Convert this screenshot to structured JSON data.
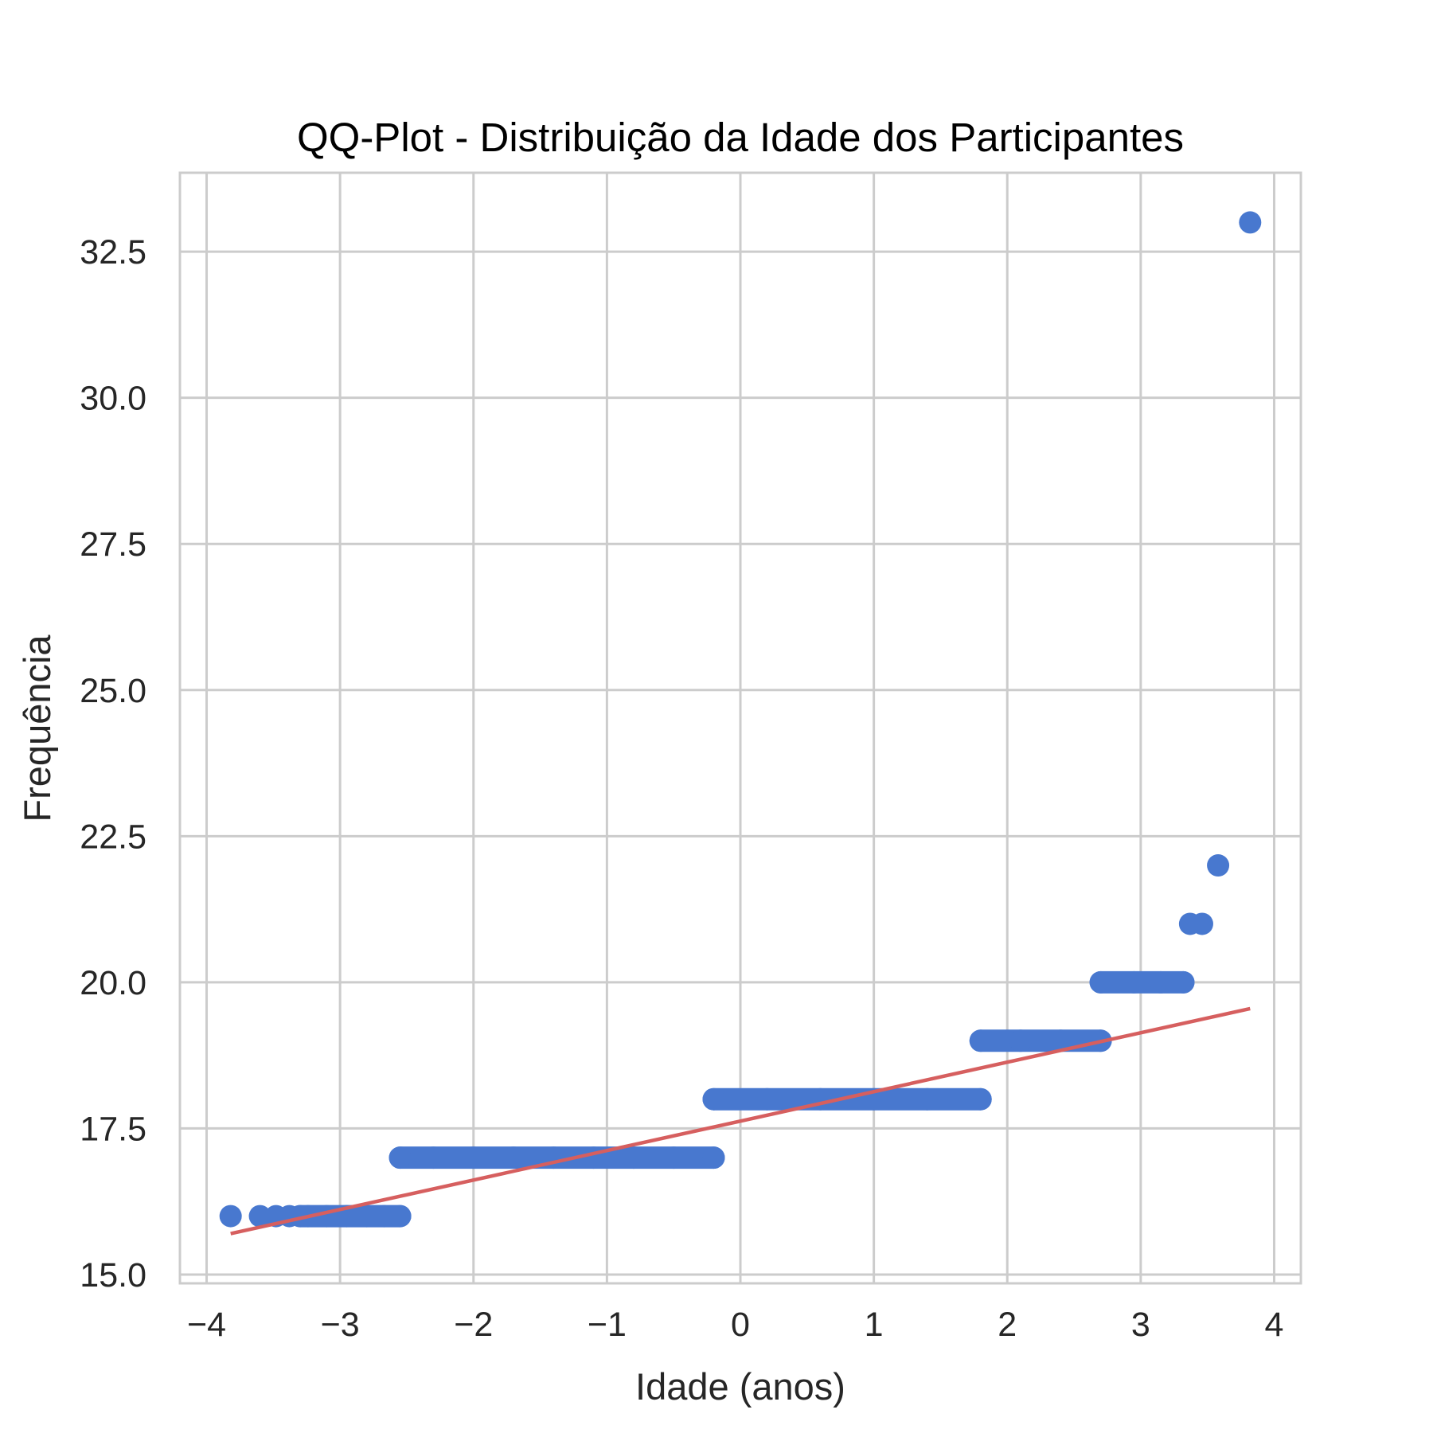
{
  "chart_data": {
    "type": "scatter",
    "title": "QQ-Plot - Distribuição da Idade dos Participantes",
    "xlabel": "Idade (anos)",
    "ylabel": "Frequência",
    "xlim": [
      -4.2,
      4.2
    ],
    "ylim": [
      14.85,
      33.85
    ],
    "x_ticks": [
      -4,
      -3,
      -2,
      -1,
      0,
      1,
      2,
      3,
      4
    ],
    "x_tick_labels": [
      "−4",
      "−3",
      "−2",
      "−1",
      "0",
      "1",
      "2",
      "3",
      "4"
    ],
    "y_ticks": [
      15.0,
      17.5,
      20.0,
      22.5,
      25.0,
      27.5,
      30.0,
      32.5
    ],
    "y_tick_labels": [
      "15.0",
      "17.5",
      "20.0",
      "22.5",
      "25.0",
      "27.5",
      "30.0",
      "32.5"
    ],
    "grid": true,
    "colors": {
      "points": "#4878cf",
      "fit_line": "#d65f5f",
      "grid": "#cccccc"
    },
    "series": [
      {
        "kind": "points",
        "points": [
          [
            -3.82,
            16
          ],
          [
            -3.6,
            16
          ],
          [
            -3.48,
            16
          ],
          [
            -3.38,
            16
          ],
          [
            -3.3,
            16
          ],
          [
            -3.24,
            16
          ],
          [
            -3.1,
            16
          ],
          [
            -2.95,
            16
          ],
          [
            -2.8,
            16
          ],
          [
            -2.67,
            16
          ],
          [
            -2.55,
            16
          ],
          [
            -2.55,
            17
          ],
          [
            -2.3,
            17
          ],
          [
            -2.0,
            17
          ],
          [
            -1.7,
            17
          ],
          [
            -1.4,
            17
          ],
          [
            -1.1,
            17
          ],
          [
            -0.8,
            17
          ],
          [
            -0.5,
            17
          ],
          [
            -0.2,
            17
          ],
          [
            -0.2,
            18
          ],
          [
            0.2,
            18
          ],
          [
            0.6,
            18
          ],
          [
            1.0,
            18
          ],
          [
            1.4,
            18
          ],
          [
            1.8,
            18
          ],
          [
            1.8,
            19
          ],
          [
            2.1,
            19
          ],
          [
            2.4,
            19
          ],
          [
            2.7,
            19
          ],
          [
            2.7,
            20
          ],
          [
            2.95,
            20
          ],
          [
            3.15,
            20
          ],
          [
            3.32,
            20
          ],
          [
            3.37,
            21
          ],
          [
            3.46,
            21
          ],
          [
            3.58,
            22
          ],
          [
            3.82,
            33
          ]
        ],
        "bands": [
          {
            "y": 16,
            "x0": -3.3,
            "x1": -2.55
          },
          {
            "y": 17,
            "x0": -2.55,
            "x1": -0.2
          },
          {
            "y": 18,
            "x0": -0.2,
            "x1": 1.8
          },
          {
            "y": 19,
            "x0": 1.8,
            "x1": 2.7
          },
          {
            "y": 20,
            "x0": 2.7,
            "x1": 3.32
          }
        ]
      },
      {
        "kind": "line",
        "points": [
          [
            -3.82,
            15.7
          ],
          [
            3.82,
            19.55
          ]
        ]
      }
    ]
  }
}
